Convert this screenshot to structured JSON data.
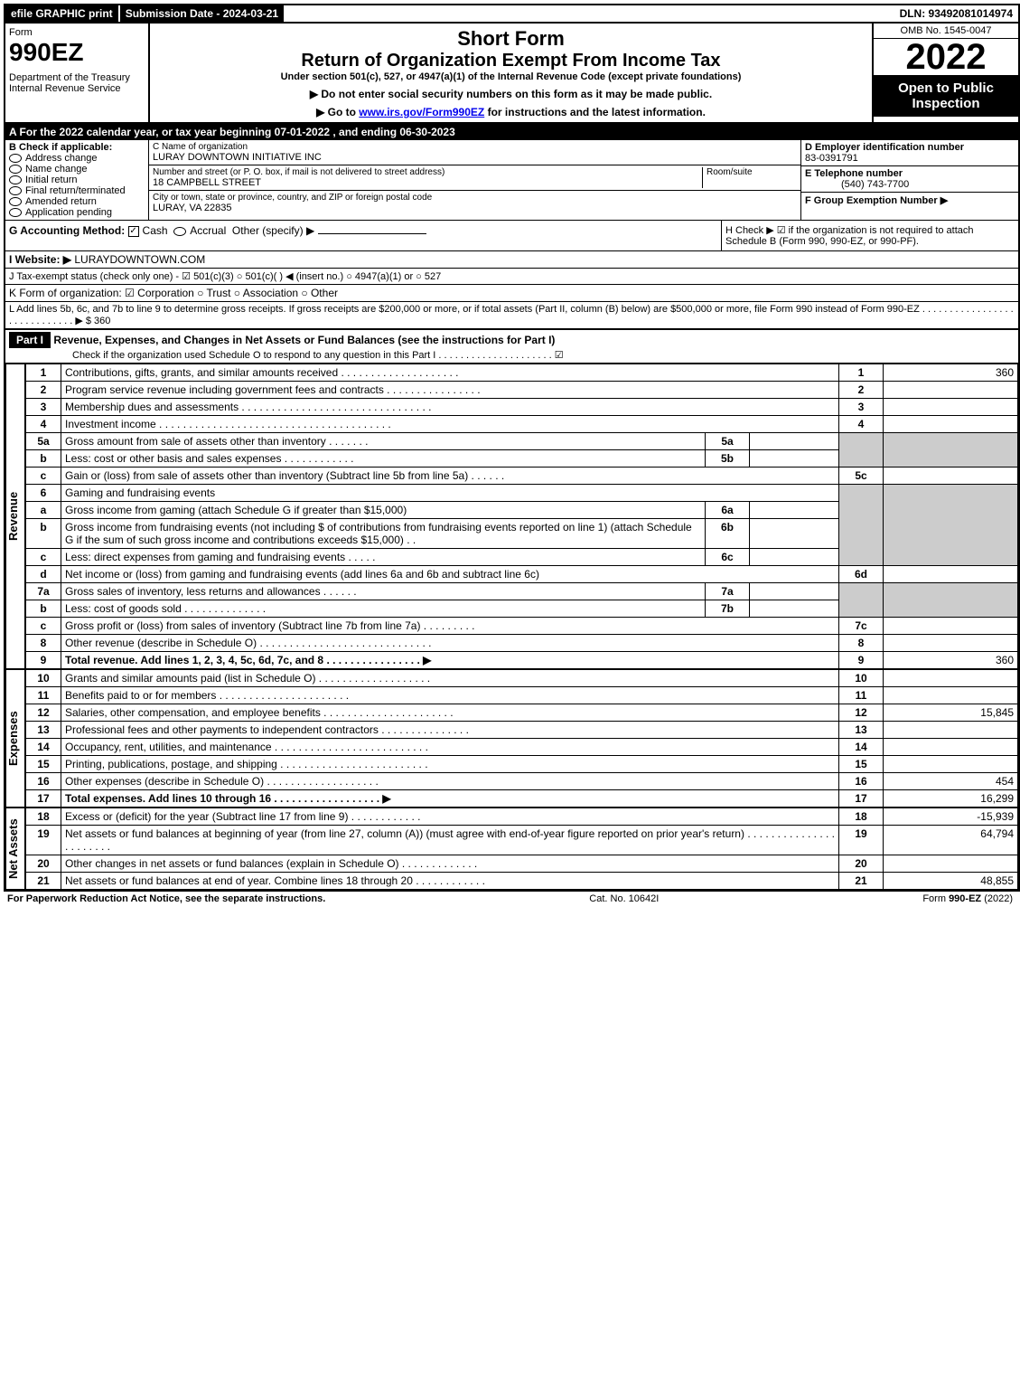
{
  "topbar": {
    "efile": "efile GRAPHIC print",
    "subdate_label": "Submission Date - 2024-03-21",
    "dln": "DLN: 93492081014974"
  },
  "header": {
    "form_label": "Form",
    "form_number": "990EZ",
    "dept": "Department of the Treasury\nInternal Revenue Service",
    "short_form": "Short Form",
    "title": "Return of Organization Exempt From Income Tax",
    "subtitle": "Under section 501(c), 527, or 4947(a)(1) of the Internal Revenue Code (except private foundations)",
    "instr1": "▶ Do not enter social security numbers on this form as it may be made public.",
    "instr2_pre": "▶ Go to ",
    "instr2_link": "www.irs.gov/Form990EZ",
    "instr2_post": " for instructions and the latest information.",
    "omb": "OMB No. 1545-0047",
    "year": "2022",
    "open": "Open to Public Inspection"
  },
  "section_a": "A  For the 2022 calendar year, or tax year beginning 07-01-2022 , and ending 06-30-2023",
  "section_b": {
    "label": "B  Check if applicable:",
    "opts": [
      "Address change",
      "Name change",
      "Initial return",
      "Final return/terminated",
      "Amended return",
      "Application pending"
    ]
  },
  "section_c": {
    "name_label": "C Name of organization",
    "name": "LURAY DOWNTOWN INITIATIVE INC",
    "street_label": "Number and street (or P. O. box, if mail is not delivered to street address)",
    "room_label": "Room/suite",
    "street": "18 CAMPBELL STREET",
    "city_label": "City or town, state or province, country, and ZIP or foreign postal code",
    "city": "LURAY, VA  22835"
  },
  "section_d": {
    "ein_label": "D Employer identification number",
    "ein": "83-0391791",
    "tel_label": "E Telephone number",
    "tel": "(540) 743-7700",
    "group_label": "F Group Exemption Number   ▶"
  },
  "section_g": "G Accounting Method:",
  "g_cash": "Cash",
  "g_accrual": "Accrual",
  "g_other": "Other (specify) ▶",
  "section_h": "H  Check ▶ ☑ if the organization is not required to attach Schedule B (Form 990, 990-EZ, or 990-PF).",
  "section_i_label": "I Website: ▶",
  "section_i": "LURAYDOWNTOWN.COM",
  "section_j": "J Tax-exempt status (check only one) - ☑ 501(c)(3)  ○ 501(c)(  ) ◀ (insert no.)  ○ 4947(a)(1) or  ○ 527",
  "section_k": "K Form of organization:  ☑ Corporation  ○ Trust  ○ Association  ○ Other",
  "section_l": "L Add lines 5b, 6c, and 7b to line 9 to determine gross receipts. If gross receipts are $200,000 or more, or if total assets (Part II, column (B) below) are $500,000 or more, file Form 990 instead of Form 990-EZ . . . . . . . . . . . . . . . . . . . . . . . . . . . . . ▶ $ 360",
  "part1": {
    "header": "Part I",
    "title": "Revenue, Expenses, and Changes in Net Assets or Fund Balances (see the instructions for Part I)",
    "check_line": "Check if the organization used Schedule O to respond to any question in this Part I . . . . . . . . . . . . . . . . . . . . . ☑"
  },
  "vert": {
    "revenue": "Revenue",
    "expenses": "Expenses",
    "netassets": "Net Assets"
  },
  "lines": {
    "l1": {
      "n": "1",
      "d": "Contributions, gifts, grants, and similar amounts received . . . . . . . . . . . . . . . . . . . .",
      "rn": "1",
      "amt": "360"
    },
    "l2": {
      "n": "2",
      "d": "Program service revenue including government fees and contracts . . . . . . . . . . . . . . . .",
      "rn": "2",
      "amt": ""
    },
    "l3": {
      "n": "3",
      "d": "Membership dues and assessments . . . . . . . . . . . . . . . . . . . . . . . . . . . . . . . .",
      "rn": "3",
      "amt": ""
    },
    "l4": {
      "n": "4",
      "d": "Investment income . . . . . . . . . . . . . . . . . . . . . . . . . . . . . . . . . . . . . . .",
      "rn": "4",
      "amt": ""
    },
    "l5a": {
      "n": "5a",
      "d": "Gross amount from sale of assets other than inventory . . . . . . .",
      "sn": "5a"
    },
    "l5b": {
      "n": "b",
      "d": "Less: cost or other basis and sales expenses . . . . . . . . . . . .",
      "sn": "5b"
    },
    "l5c": {
      "n": "c",
      "d": "Gain or (loss) from sale of assets other than inventory (Subtract line 5b from line 5a) . . . . . .",
      "rn": "5c",
      "amt": ""
    },
    "l6": {
      "n": "6",
      "d": "Gaming and fundraising events"
    },
    "l6a": {
      "n": "a",
      "d": "Gross income from gaming (attach Schedule G if greater than $15,000)",
      "sn": "6a"
    },
    "l6b": {
      "n": "b",
      "d": "Gross income from fundraising events (not including $                  of contributions from fundraising events reported on line 1) (attach Schedule G if the sum of such gross income and contributions exceeds $15,000)    .   .",
      "sn": "6b"
    },
    "l6c": {
      "n": "c",
      "d": "Less: direct expenses from gaming and fundraising events  . . . . .",
      "sn": "6c"
    },
    "l6d": {
      "n": "d",
      "d": "Net income or (loss) from gaming and fundraising events (add lines 6a and 6b and subtract line 6c)",
      "rn": "6d",
      "amt": ""
    },
    "l7a": {
      "n": "7a",
      "d": "Gross sales of inventory, less returns and allowances . . . . . .",
      "sn": "7a"
    },
    "l7b": {
      "n": "b",
      "d": "Less: cost of goods sold        .   .   .   .   .   .   .   .   .   .   .   .   .   .",
      "sn": "7b"
    },
    "l7c": {
      "n": "c",
      "d": "Gross profit or (loss) from sales of inventory (Subtract line 7b from line 7a) . . . . . . . . .",
      "rn": "7c",
      "amt": ""
    },
    "l8": {
      "n": "8",
      "d": "Other revenue (describe in Schedule O) . . . . . . . . . . . . . . . . . . . . . . . . . . . . .",
      "rn": "8",
      "amt": ""
    },
    "l9": {
      "n": "9",
      "d": "Total revenue. Add lines 1, 2, 3, 4, 5c, 6d, 7c, and 8   .   .   .   .   .   .   .   .   .   .   .   .   .   .   .   .   ▶",
      "rn": "9",
      "amt": "360"
    },
    "l10": {
      "n": "10",
      "d": "Grants and similar amounts paid (list in Schedule O) . . . . . . . . . . . . . . . . . . .",
      "rn": "10",
      "amt": ""
    },
    "l11": {
      "n": "11",
      "d": "Benefits paid to or for members      .   .   .   .   .   .   .   .   .   .   .   .   .   .   .   .   .   .   .   .   .   .",
      "rn": "11",
      "amt": ""
    },
    "l12": {
      "n": "12",
      "d": "Salaries, other compensation, and employee benefits . . . . . . . . . . . . . . . . . . . . . .",
      "rn": "12",
      "amt": "15,845"
    },
    "l13": {
      "n": "13",
      "d": "Professional fees and other payments to independent contractors . . . . . . . . . . . . . . .",
      "rn": "13",
      "amt": ""
    },
    "l14": {
      "n": "14",
      "d": "Occupancy, rent, utilities, and maintenance . . . . . . . . . . . . . . . . . . . . . . . . . .",
      "rn": "14",
      "amt": ""
    },
    "l15": {
      "n": "15",
      "d": "Printing, publications, postage, and shipping . . . . . . . . . . . . . . . . . . . . . . . . .",
      "rn": "15",
      "amt": ""
    },
    "l16": {
      "n": "16",
      "d": "Other expenses (describe in Schedule O)     .   .   .   .   .   .   .   .   .   .   .   .   .   .   .   .   .   .   .",
      "rn": "16",
      "amt": "454"
    },
    "l17": {
      "n": "17",
      "d": "Total expenses. Add lines 10 through 16     .   .   .   .   .   .   .   .   .   .   .   .   .   .   .   .   .   .   ▶",
      "rn": "17",
      "amt": "16,299"
    },
    "l18": {
      "n": "18",
      "d": "Excess or (deficit) for the year (Subtract line 17 from line 9)       .   .   .   .   .   .   .   .   .   .   .   .",
      "rn": "18",
      "amt": "-15,939"
    },
    "l19": {
      "n": "19",
      "d": "Net assets or fund balances at beginning of year (from line 27, column (A)) (must agree with end-of-year figure reported on prior year's return) . . . . . . . . . . . . . . . . . . . . . . .",
      "rn": "19",
      "amt": "64,794"
    },
    "l20": {
      "n": "20",
      "d": "Other changes in net assets or fund balances (explain in Schedule O) . . . . . . . . . . . . .",
      "rn": "20",
      "amt": ""
    },
    "l21": {
      "n": "21",
      "d": "Net assets or fund balances at end of year. Combine lines 18 through 20 . . . . . . . . . . . .",
      "rn": "21",
      "amt": "48,855"
    }
  },
  "footer": {
    "left": "For Paperwork Reduction Act Notice, see the separate instructions.",
    "center": "Cat. No. 10642I",
    "right": "Form 990-EZ (2022)"
  }
}
